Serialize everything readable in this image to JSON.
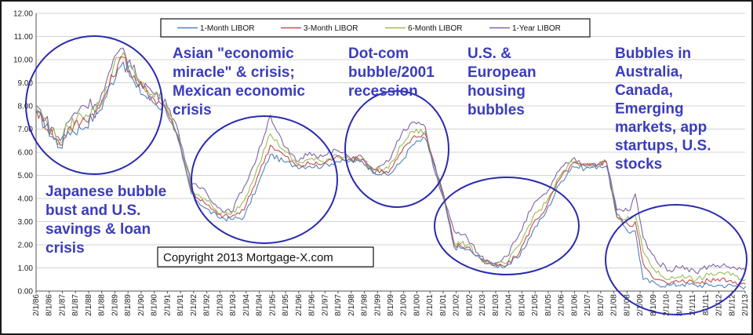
{
  "chart_data": {
    "type": "line",
    "title": "",
    "xlabel": "",
    "ylabel": "",
    "ylim": [
      0,
      12
    ],
    "yticks": [
      "0.00",
      "1.00",
      "2.00",
      "3.00",
      "4.00",
      "5.00",
      "6.00",
      "7.00",
      "8.00",
      "9.00",
      "10.00",
      "11.00",
      "12.00"
    ],
    "xticks": [
      "2/1/86",
      "8/1/86",
      "2/1/87",
      "8/1/87",
      "2/1/88",
      "8/1/88",
      "2/1/89",
      "8/1/89",
      "2/1/90",
      "8/1/90",
      "2/1/91",
      "8/1/91",
      "2/1/92",
      "8/1/92",
      "2/1/93",
      "8/1/93",
      "2/1/94",
      "8/1/94",
      "2/1/95",
      "8/1/95",
      "2/1/96",
      "8/1/96",
      "2/1/97",
      "8/1/97",
      "2/1/98",
      "8/1/98",
      "2/1/99",
      "8/1/99",
      "2/1/00",
      "8/1/00",
      "2/1/01",
      "8/1/01",
      "2/1/02",
      "8/1/02",
      "2/1/03",
      "8/1/03",
      "2/1/04",
      "8/1/04",
      "2/1/05",
      "8/1/05",
      "2/1/06",
      "8/1/06",
      "2/1/07",
      "8/1/07",
      "2/1/08",
      "8/1/08",
      "2/1/09",
      "8/1/09",
      "2/1/10",
      "8/1/10",
      "2/1/11",
      "8/1/11",
      "2/1/12",
      "8/1/12",
      "2/1/13"
    ],
    "grid": true,
    "legend_position": "top",
    "x": [
      1986.1,
      1987.0,
      1987.3,
      1987.8,
      1988.5,
      1989.2,
      1989.4,
      1989.9,
      1990.5,
      1991.0,
      1991.5,
      1992.0,
      1992.5,
      1993.0,
      1993.5,
      1994.0,
      1994.5,
      1995.0,
      1995.5,
      1996.0,
      1996.5,
      1997.0,
      1997.5,
      1998.0,
      1998.5,
      1998.9,
      1999.5,
      2000.0,
      2000.4,
      2000.9,
      2001.2,
      2001.6,
      2002.0,
      2002.5,
      2003.0,
      2003.5,
      2004.0,
      2004.5,
      2005.0,
      2005.5,
      2006.0,
      2006.5,
      2007.0,
      2007.5,
      2007.8,
      2008.2,
      2008.7,
      2008.9,
      2009.2,
      2009.7,
      2010.2,
      2010.7,
      2011.2,
      2011.7,
      2012.2,
      2012.7,
      2013.1
    ],
    "series": [
      {
        "name": "1-Month LIBOR",
        "color": "#4f81bd",
        "values": [
          7.7,
          6.2,
          6.9,
          7.0,
          7.8,
          9.6,
          9.9,
          8.8,
          8.2,
          7.9,
          6.5,
          4.2,
          3.6,
          3.2,
          3.1,
          3.2,
          4.5,
          5.9,
          5.6,
          5.4,
          5.4,
          5.4,
          5.6,
          5.6,
          5.6,
          5.2,
          5.0,
          5.6,
          6.3,
          6.6,
          5.6,
          4.0,
          1.9,
          1.8,
          1.4,
          1.1,
          1.1,
          1.5,
          2.6,
          3.4,
          4.6,
          5.4,
          5.3,
          5.4,
          5.4,
          3.3,
          2.5,
          2.6,
          0.5,
          0.3,
          0.25,
          0.3,
          0.25,
          0.25,
          0.25,
          0.22,
          0.2
        ]
      },
      {
        "name": "3-Month LIBOR",
        "color": "#c0504d",
        "values": [
          7.8,
          6.3,
          7.0,
          7.3,
          7.9,
          9.8,
          10.1,
          9.0,
          8.4,
          8.0,
          6.6,
          4.3,
          3.8,
          3.3,
          3.2,
          3.5,
          4.9,
          6.3,
          5.9,
          5.4,
          5.5,
          5.5,
          5.8,
          5.7,
          5.7,
          5.3,
          5.1,
          6.0,
          6.6,
          6.8,
          5.7,
          4.2,
          2.0,
          1.9,
          1.4,
          1.1,
          1.1,
          1.7,
          2.9,
          3.6,
          4.8,
          5.5,
          5.4,
          5.5,
          5.6,
          3.2,
          2.8,
          3.0,
          1.2,
          0.5,
          0.3,
          0.5,
          0.35,
          0.45,
          0.55,
          0.4,
          0.3
        ]
      },
      {
        "name": "6-Month LIBOR",
        "color": "#9bbb59",
        "values": [
          7.9,
          6.4,
          7.1,
          7.6,
          8.0,
          10.1,
          10.3,
          9.1,
          8.5,
          8.1,
          6.7,
          4.4,
          4.0,
          3.4,
          3.3,
          3.9,
          5.3,
          6.8,
          6.1,
          5.5,
          5.7,
          5.6,
          5.9,
          5.7,
          5.7,
          5.2,
          5.3,
          6.3,
          6.9,
          6.9,
          5.6,
          4.1,
          2.1,
          2.0,
          1.4,
          1.1,
          1.2,
          2.0,
          3.2,
          3.8,
          4.9,
          5.6,
          5.4,
          5.5,
          5.6,
          3.2,
          3.1,
          3.3,
          1.7,
          0.8,
          0.5,
          0.7,
          0.45,
          0.7,
          0.8,
          0.65,
          0.5
        ]
      },
      {
        "name": "1-Year LIBOR",
        "color": "#8064a2",
        "values": [
          8.0,
          6.5,
          7.3,
          8.0,
          8.2,
          10.3,
          10.5,
          9.3,
          8.6,
          8.3,
          6.9,
          4.6,
          4.4,
          3.6,
          3.4,
          4.5,
          5.8,
          7.6,
          6.3,
          5.6,
          6.0,
          5.8,
          6.1,
          5.8,
          5.8,
          5.1,
          5.6,
          6.8,
          7.3,
          7.1,
          5.4,
          4.0,
          2.6,
          2.3,
          1.5,
          1.2,
          1.5,
          2.5,
          3.7,
          4.2,
          5.2,
          5.7,
          5.5,
          5.5,
          5.6,
          3.5,
          3.5,
          4.2,
          2.3,
          1.3,
          0.9,
          1.1,
          0.8,
          1.1,
          1.1,
          1.0,
          0.9
        ]
      }
    ],
    "annotations": [
      {
        "id": "japan",
        "lines": [
          "Japanese bubble",
          "bust and U.S.",
          "savings & loan",
          "crisis"
        ]
      },
      {
        "id": "asian",
        "lines": [
          "Asian \"economic",
          "miracle\" & crisis;",
          "Mexican economic",
          "crisis"
        ]
      },
      {
        "id": "dotcom",
        "lines": [
          "Dot-com",
          "bubble/2001",
          "recession"
        ]
      },
      {
        "id": "housing",
        "lines": [
          "U.S. &",
          "European",
          "housing",
          "bubbles"
        ]
      },
      {
        "id": "australia",
        "lines": [
          "Bubbles in",
          "Australia,",
          "Canada,",
          "Emerging",
          "markets, app",
          "startups, U.S.",
          "stocks"
        ]
      }
    ],
    "copyright": "Copyright 2013 Mortgage-X.com"
  }
}
